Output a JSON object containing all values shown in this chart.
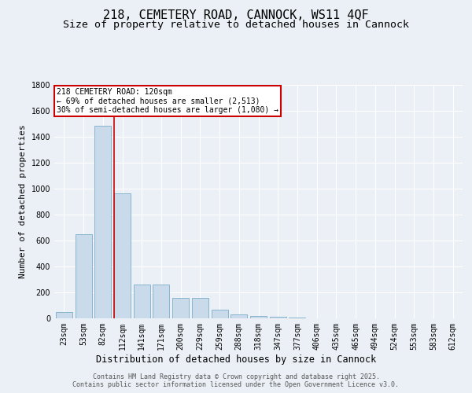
{
  "title": "218, CEMETERY ROAD, CANNOCK, WS11 4QF",
  "subtitle": "Size of property relative to detached houses in Cannock",
  "xlabel": "Distribution of detached houses by size in Cannock",
  "ylabel": "Number of detached properties",
  "categories": [
    "23sqm",
    "53sqm",
    "82sqm",
    "112sqm",
    "141sqm",
    "171sqm",
    "200sqm",
    "229sqm",
    "259sqm",
    "288sqm",
    "318sqm",
    "347sqm",
    "377sqm",
    "406sqm",
    "435sqm",
    "465sqm",
    "494sqm",
    "524sqm",
    "553sqm",
    "583sqm",
    "612sqm"
  ],
  "values": [
    50,
    650,
    1480,
    960,
    260,
    260,
    160,
    160,
    65,
    30,
    20,
    10,
    5,
    2,
    2,
    2,
    1,
    1,
    1,
    0,
    0
  ],
  "bar_color": "#c9daea",
  "bar_edge_color": "#7aaec8",
  "vline_color": "#cc0000",
  "vline_x_index": 3,
  "annotation_text": "218 CEMETERY ROAD: 120sqm\n← 69% of detached houses are smaller (2,513)\n30% of semi-detached houses are larger (1,080) →",
  "annotation_box_edgecolor": "#cc0000",
  "background_color": "#eaf0f6",
  "grid_color": "#ffffff",
  "ylim": [
    0,
    1800
  ],
  "yticks": [
    0,
    200,
    400,
    600,
    800,
    1000,
    1200,
    1400,
    1600,
    1800
  ],
  "footer_line1": "Contains HM Land Registry data © Crown copyright and database right 2025.",
  "footer_line2": "Contains public sector information licensed under the Open Government Licence v3.0.",
  "title_fontsize": 11,
  "subtitle_fontsize": 9.5,
  "ylabel_fontsize": 8,
  "xlabel_fontsize": 8.5,
  "tick_fontsize": 7,
  "annotation_fontsize": 7,
  "footer_fontsize": 6
}
